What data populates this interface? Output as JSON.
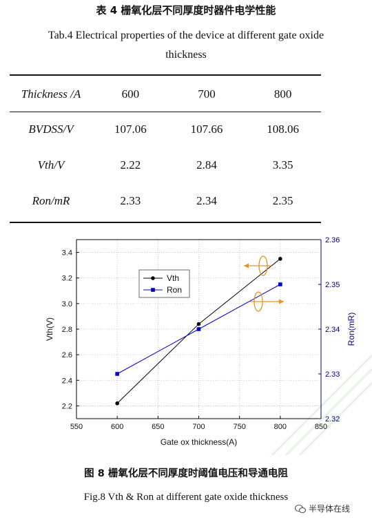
{
  "table_caption_zh": "表 4 栅氧化层不同厚度时器件电学性能",
  "table_caption_en": "Tab.4 Electrical properties of the device at different gate oxide thickness",
  "table": {
    "header": [
      "Thickness /A",
      "600",
      "700",
      "800"
    ],
    "rows": [
      [
        "BVDSS/V",
        "107.06",
        "107.66",
        "108.06"
      ],
      [
        "Vth/V",
        "2.22",
        "2.84",
        "3.35"
      ],
      [
        "Ron/mR",
        "2.33",
        "2.34",
        "2.35"
      ]
    ]
  },
  "chart_data": {
    "type": "line",
    "xlabel": "Gate ox thickness(A)",
    "ylabel_left": "Vth(V)",
    "ylabel_right": "Ron(mR)",
    "xlim": [
      550,
      850
    ],
    "ylim_left": [
      2.1,
      3.5
    ],
    "ylim_right": [
      2.32,
      2.36
    ],
    "x_ticks": [
      "550",
      "600",
      "650",
      "700",
      "750",
      "800",
      "850"
    ],
    "y_left_ticks": [
      "2.2",
      "2.4",
      "2.6",
      "2.8",
      "3.0",
      "3.2",
      "3.4"
    ],
    "y_right_ticks": [
      "2.32",
      "2.33",
      "2.34",
      "2.35",
      "2.36"
    ],
    "grid": true,
    "legend_position": "top-left",
    "series": [
      {
        "name": "Vth",
        "axis": "left",
        "color": "#000000",
        "marker": "circle",
        "x": [
          600,
          700,
          800
        ],
        "y": [
          2.22,
          2.84,
          3.35
        ]
      },
      {
        "name": "Ron",
        "axis": "right",
        "color": "#0000cc",
        "marker": "square",
        "x": [
          600,
          700,
          800
        ],
        "y": [
          2.33,
          2.34,
          2.35
        ]
      }
    ],
    "right_axis_color": "#00008b",
    "annotation_color": "#e8921e"
  },
  "figure_caption_zh": "图 8 栅氧化层不同厚度时阈值电压和导通电阻",
  "figure_caption_en": "Fig.8 Vth & Ron at different gate oxide thickness",
  "watermark": "半导体在线",
  "watermark_icon": "wechat-icon"
}
